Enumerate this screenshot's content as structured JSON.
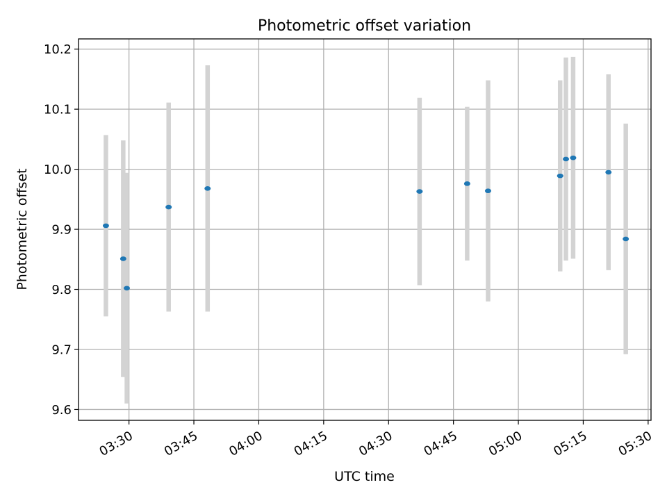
{
  "chart_data": {
    "type": "scatter",
    "title": "Photometric offset variation",
    "xlabel": "UTC time",
    "ylabel": "Photometric offset",
    "x_ticks": [
      "03:30",
      "03:45",
      "04:00",
      "04:15",
      "04:30",
      "04:45",
      "05:00",
      "05:15",
      "05:30"
    ],
    "y_ticks": [
      "9.6",
      "9.7",
      "9.8",
      "9.9",
      "10.0",
      "10.1",
      "10.2"
    ],
    "xlim": [
      "03:18:20",
      "05:30:40"
    ],
    "ylim": [
      9.582,
      10.217
    ],
    "grid": true,
    "series": [
      {
        "points": [
          {
            "t": "03:24:40",
            "y": 9.906,
            "err": 0.151
          },
          {
            "t": "03:28:40",
            "y": 9.851,
            "err": 0.197
          },
          {
            "t": "03:29:30",
            "y": 9.802,
            "err": 0.192
          },
          {
            "t": "03:39:10",
            "y": 9.937,
            "err": 0.174
          },
          {
            "t": "03:48:10",
            "y": 9.968,
            "err": 0.205
          },
          {
            "t": "04:37:10",
            "y": 9.963,
            "err": 0.156
          },
          {
            "t": "04:48:10",
            "y": 9.976,
            "err": 0.128
          },
          {
            "t": "04:53:00",
            "y": 9.964,
            "err": 0.184
          },
          {
            "t": "05:09:40",
            "y": 9.989,
            "err": 0.159
          },
          {
            "t": "05:11:00",
            "y": 10.017,
            "err": 0.169
          },
          {
            "t": "05:12:40",
            "y": 10.019,
            "err": 0.168
          },
          {
            "t": "05:20:50",
            "y": 9.995,
            "err": 0.163
          },
          {
            "t": "05:24:50",
            "y": 9.884,
            "err": 0.192
          }
        ]
      }
    ],
    "colors": {
      "marker": "#1f77b4",
      "errorbar": "#d3d3d3",
      "grid": "#b0b0b0",
      "axes": "#000000"
    }
  }
}
